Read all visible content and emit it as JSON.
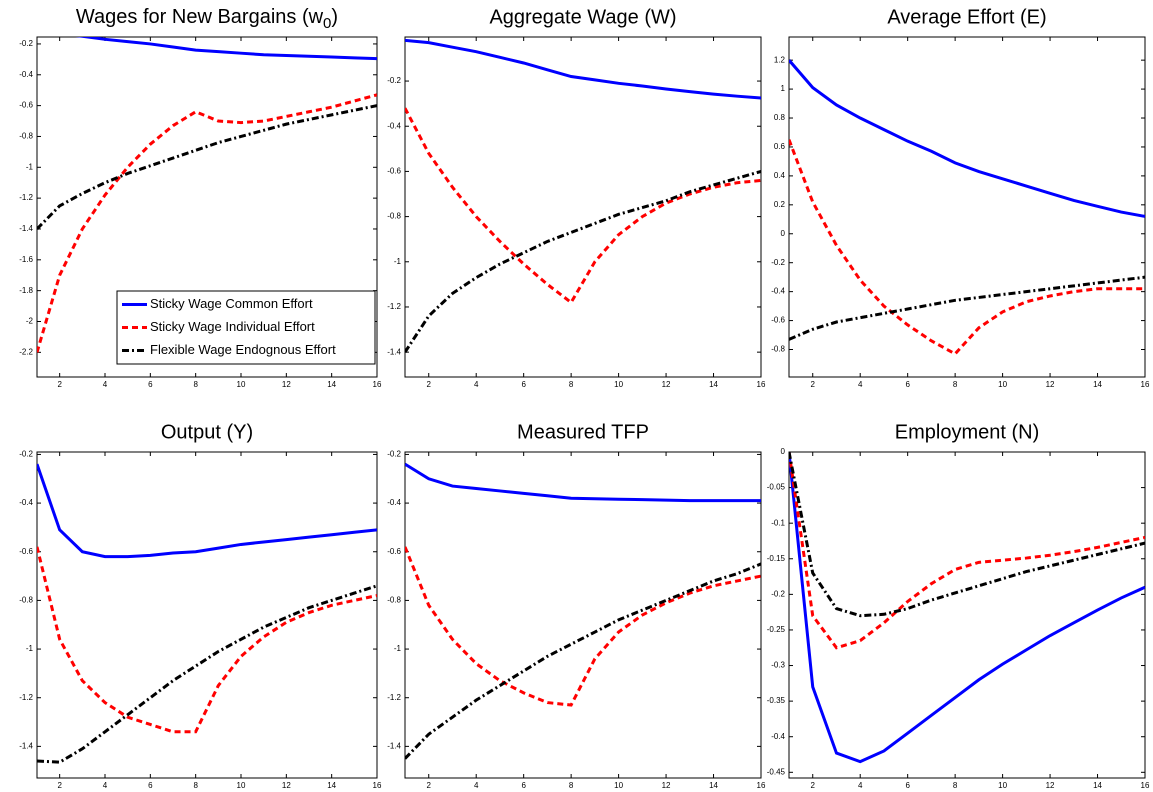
{
  "chart_data": [
    {
      "type": "line",
      "title": "Wages for New Bargains (w0)",
      "legend": "lower right",
      "x": [
        1,
        2,
        3,
        4,
        5,
        6,
        7,
        8,
        9,
        10,
        11,
        12,
        13,
        14,
        15,
        16
      ],
      "xlim": [
        1,
        16
      ],
      "xticks": [
        2,
        4,
        6,
        8,
        10,
        12,
        14,
        16
      ],
      "ylim": [
        -2.36,
        -0.155
      ],
      "yticks": [
        -2.2,
        -2,
        -1.8,
        -1.6,
        -1.4,
        -1.2,
        -1,
        -0.8,
        -0.6,
        -0.4,
        -0.2
      ],
      "series": [
        {
          "name": "Sticky Wage Common Effort",
          "color": "#0000ff",
          "style": "solid",
          "values": [
            -0.12,
            -0.135,
            -0.15,
            -0.17,
            -0.185,
            -0.2,
            -0.22,
            -0.24,
            -0.25,
            -0.26,
            -0.27,
            -0.275,
            -0.28,
            -0.285,
            -0.29,
            -0.295
          ]
        },
        {
          "name": "Sticky Wage Individual Effort",
          "color": "#ff0000",
          "style": "dashed",
          "values": [
            -2.2,
            -1.7,
            -1.4,
            -1.18,
            -1,
            -0.85,
            -0.73,
            -0.64,
            -0.7,
            -0.71,
            -0.7,
            -0.67,
            -0.64,
            -0.61,
            -0.57,
            -0.53
          ]
        },
        {
          "name": "Flexible Wage Endognous Effort",
          "color": "#000000",
          "style": "dashdot",
          "values": [
            -1.4,
            -1.25,
            -1.17,
            -1.1,
            -1.04,
            -0.99,
            -0.94,
            -0.89,
            -0.84,
            -0.8,
            -0.76,
            -0.72,
            -0.69,
            -0.66,
            -0.63,
            -0.6
          ]
        }
      ]
    },
    {
      "type": "line",
      "title": "Aggregate Wage (W)",
      "x": [
        1,
        2,
        3,
        4,
        5,
        6,
        7,
        8,
        9,
        10,
        11,
        12,
        13,
        14,
        15,
        16
      ],
      "xlim": [
        1,
        16
      ],
      "xticks": [
        2,
        4,
        6,
        8,
        10,
        12,
        14,
        16
      ],
      "ylim": [
        -1.51,
        -0.005
      ],
      "yticks": [
        -1.4,
        -1.2,
        -1,
        -0.8,
        -0.6,
        -0.4,
        -0.2
      ],
      "series": [
        {
          "color": "#0000ff",
          "style": "solid",
          "values": [
            -0.02,
            -0.03,
            -0.05,
            -0.07,
            -0.095,
            -0.12,
            -0.15,
            -0.18,
            -0.195,
            -0.21,
            -0.222,
            -0.235,
            -0.247,
            -0.258,
            -0.267,
            -0.275
          ]
        },
        {
          "color": "#ff0000",
          "style": "dashed",
          "values": [
            -0.32,
            -0.52,
            -0.67,
            -0.8,
            -0.91,
            -1.01,
            -1.1,
            -1.18,
            -1,
            -0.88,
            -0.8,
            -0.74,
            -0.7,
            -0.67,
            -0.65,
            -0.64
          ]
        },
        {
          "color": "#000000",
          "style": "dashdot",
          "values": [
            -1.4,
            -1.24,
            -1.14,
            -1.07,
            -1.01,
            -0.96,
            -0.91,
            -0.87,
            -0.83,
            -0.79,
            -0.76,
            -0.73,
            -0.69,
            -0.66,
            -0.63,
            -0.6
          ]
        }
      ]
    },
    {
      "type": "line",
      "title": "Average Effort (E)",
      "x": [
        1,
        2,
        3,
        4,
        5,
        6,
        7,
        8,
        9,
        10,
        11,
        12,
        13,
        14,
        15,
        16
      ],
      "xlim": [
        1,
        16
      ],
      "xticks": [
        2,
        4,
        6,
        8,
        10,
        12,
        14,
        16
      ],
      "ylim": [
        -0.99,
        1.36
      ],
      "yticks": [
        -0.8,
        -0.6,
        -0.4,
        -0.2,
        0,
        0.2,
        0.4,
        0.6,
        0.8,
        1,
        1.2
      ],
      "series": [
        {
          "color": "#0000ff",
          "style": "solid",
          "values": [
            1.2,
            1.01,
            0.89,
            0.8,
            0.72,
            0.64,
            0.57,
            0.49,
            0.43,
            0.38,
            0.33,
            0.28,
            0.23,
            0.19,
            0.15,
            0.12
          ]
        },
        {
          "color": "#ff0000",
          "style": "dashed",
          "values": [
            0.65,
            0.22,
            -0.08,
            -0.32,
            -0.5,
            -0.63,
            -0.74,
            -0.83,
            -0.65,
            -0.54,
            -0.47,
            -0.43,
            -0.4,
            -0.38,
            -0.38,
            -0.38
          ]
        },
        {
          "color": "#000000",
          "style": "dashdot",
          "values": [
            -0.73,
            -0.66,
            -0.61,
            -0.58,
            -0.55,
            -0.52,
            -0.49,
            -0.46,
            -0.44,
            -0.42,
            -0.4,
            -0.38,
            -0.36,
            -0.34,
            -0.32,
            -0.3
          ]
        }
      ]
    },
    {
      "type": "line",
      "title": "Output (Y)",
      "x": [
        1,
        2,
        3,
        4,
        5,
        6,
        7,
        8,
        9,
        10,
        11,
        12,
        13,
        14,
        15,
        16
      ],
      "xlim": [
        1,
        16
      ],
      "xticks": [
        2,
        4,
        6,
        8,
        10,
        12,
        14,
        16
      ],
      "ylim": [
        -1.53,
        -0.19
      ],
      "yticks": [
        -1.4,
        -1.2,
        -1,
        -0.8,
        -0.6,
        -0.4,
        -0.2
      ],
      "series": [
        {
          "color": "#0000ff",
          "style": "solid",
          "values": [
            -0.24,
            -0.51,
            -0.6,
            -0.62,
            -0.62,
            -0.615,
            -0.605,
            -0.6,
            -0.585,
            -0.57,
            -0.56,
            -0.55,
            -0.54,
            -0.53,
            -0.52,
            -0.51
          ]
        },
        {
          "color": "#ff0000",
          "style": "dashed",
          "values": [
            -0.58,
            -0.96,
            -1.13,
            -1.22,
            -1.28,
            -1.31,
            -1.34,
            -1.34,
            -1.15,
            -1.03,
            -0.95,
            -0.89,
            -0.85,
            -0.82,
            -0.8,
            -0.78
          ]
        },
        {
          "color": "#000000",
          "style": "dashdot",
          "values": [
            -1.46,
            -1.465,
            -1.41,
            -1.34,
            -1.27,
            -1.2,
            -1.13,
            -1.07,
            -1.01,
            -0.96,
            -0.91,
            -0.87,
            -0.83,
            -0.8,
            -0.77,
            -0.74
          ]
        }
      ]
    },
    {
      "type": "line",
      "title": "Measured TFP",
      "x": [
        1,
        2,
        3,
        4,
        5,
        6,
        7,
        8,
        9,
        10,
        11,
        12,
        13,
        14,
        15,
        16
      ],
      "xlim": [
        1,
        16
      ],
      "xticks": [
        2,
        4,
        6,
        8,
        10,
        12,
        14,
        16
      ],
      "ylim": [
        -1.53,
        -0.19
      ],
      "yticks": [
        -1.4,
        -1.2,
        -1,
        -0.8,
        -0.6,
        -0.4,
        -0.2
      ],
      "series": [
        {
          "color": "#0000ff",
          "style": "solid",
          "values": [
            -0.24,
            -0.3,
            -0.33,
            -0.34,
            -0.35,
            -0.36,
            -0.37,
            -0.38,
            -0.382,
            -0.384,
            -0.386,
            -0.388,
            -0.39,
            -0.39,
            -0.39,
            -0.39
          ]
        },
        {
          "color": "#ff0000",
          "style": "dashed",
          "values": [
            -0.58,
            -0.82,
            -0.96,
            -1.06,
            -1.13,
            -1.18,
            -1.22,
            -1.23,
            -1.04,
            -0.93,
            -0.86,
            -0.81,
            -0.77,
            -0.74,
            -0.72,
            -0.7
          ]
        },
        {
          "color": "#000000",
          "style": "dashdot",
          "values": [
            -1.45,
            -1.35,
            -1.28,
            -1.21,
            -1.15,
            -1.09,
            -1.03,
            -0.98,
            -0.93,
            -0.88,
            -0.84,
            -0.8,
            -0.76,
            -0.72,
            -0.69,
            -0.65
          ]
        }
      ]
    },
    {
      "type": "line",
      "title": "Employment (N)",
      "x": [
        1,
        2,
        3,
        4,
        5,
        6,
        7,
        8,
        9,
        10,
        11,
        12,
        13,
        14,
        15,
        16
      ],
      "xlim": [
        1,
        16
      ],
      "xticks": [
        2,
        4,
        6,
        8,
        10,
        12,
        14,
        16
      ],
      "ylim": [
        -0.458,
        0
      ],
      "yticks": [
        -0.45,
        -0.4,
        -0.35,
        -0.3,
        -0.25,
        -0.2,
        -0.15,
        -0.1,
        -0.05,
        0
      ],
      "series": [
        {
          "color": "#0000ff",
          "style": "solid",
          "values": [
            0,
            -0.33,
            -0.423,
            -0.435,
            -0.42,
            -0.395,
            -0.37,
            -0.345,
            -0.32,
            -0.298,
            -0.278,
            -0.258,
            -0.24,
            -0.222,
            -0.205,
            -0.19
          ]
        },
        {
          "color": "#ff0000",
          "style": "dashed",
          "values": [
            0,
            -0.23,
            -0.275,
            -0.265,
            -0.24,
            -0.21,
            -0.185,
            -0.165,
            -0.155,
            -0.152,
            -0.149,
            -0.145,
            -0.14,
            -0.134,
            -0.127,
            -0.12
          ]
        },
        {
          "color": "#000000",
          "style": "dashdot",
          "values": [
            0,
            -0.17,
            -0.22,
            -0.23,
            -0.228,
            -0.22,
            -0.208,
            -0.198,
            -0.188,
            -0.178,
            -0.168,
            -0.16,
            -0.152,
            -0.144,
            -0.136,
            -0.128
          ]
        }
      ]
    }
  ]
}
